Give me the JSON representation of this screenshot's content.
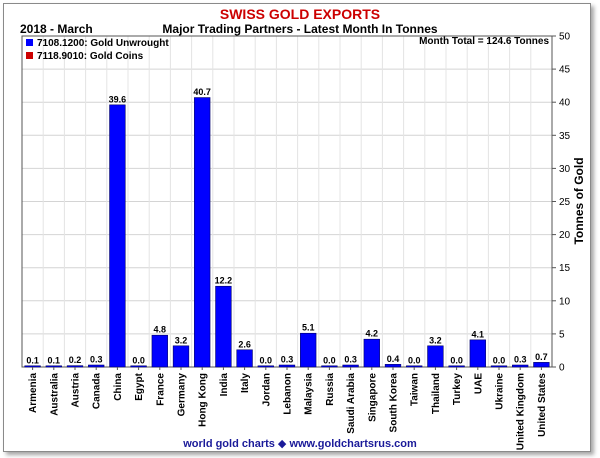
{
  "header": {
    "title": "SWISS GOLD EXPORTS",
    "period": "2018 - March",
    "subtitle": "Major Trading Partners - Latest Month In Tonnes"
  },
  "footer": {
    "text": "world gold charts ◆ www.goldchartsrus.com"
  },
  "colors": {
    "title": "#cc0000",
    "series_unwrought": "#0000ff",
    "series_coins": "#cc0000",
    "footer": "#1a1a99"
  },
  "chart_data": {
    "type": "bar",
    "title": "SWISS GOLD EXPORTS",
    "subtitle": "Major Trading Partners - Latest Month In Tonnes",
    "annotation": "Month Total = 124.6 Tonnes",
    "ylabel": "Tonnes of Gold",
    "ylim": [
      0,
      50
    ],
    "yticks": [
      0,
      5,
      10,
      15,
      20,
      25,
      30,
      35,
      40,
      45,
      50
    ],
    "grid": true,
    "legend_position": "top-left",
    "categories": [
      "Armenia",
      "Australia",
      "Austria",
      "Canada",
      "China",
      "Egypt",
      "France",
      "Germany",
      "Hong Kong",
      "India",
      "Italy",
      "Jordan",
      "Lebanon",
      "Malaysia",
      "Russia",
      "Saudi Arabia",
      "Singapore",
      "South Korea",
      "Taiwan",
      "Thailand",
      "Turkey",
      "UAE",
      "Ukraine",
      "United Kingdom",
      "United States"
    ],
    "series": [
      {
        "name": "7108.1200: Gold Unwrought",
        "color": "#0000ff",
        "values": [
          0.1,
          0.1,
          0.2,
          0.3,
          39.6,
          0.0,
          4.8,
          3.2,
          40.7,
          12.2,
          2.6,
          0.0,
          0.3,
          5.1,
          0.0,
          0.3,
          4.2,
          0.4,
          0.0,
          3.2,
          0.0,
          4.1,
          0.0,
          0.3,
          0.7
        ]
      },
      {
        "name": "7118.9010: Gold Coins",
        "color": "#cc0000",
        "values": [
          0,
          0,
          0,
          0,
          0,
          0,
          0,
          0,
          0,
          0,
          0,
          0,
          0,
          0,
          0,
          0,
          0,
          0,
          0,
          0,
          0,
          0,
          0,
          0,
          0
        ]
      }
    ],
    "data_labels": [
      "0.1",
      "0.1",
      "0.2",
      "0.3",
      "39.6",
      "0.0",
      "4.8",
      "3.2",
      "40.7",
      "12.2",
      "2.6",
      "0.0",
      "0.3",
      "5.1",
      "0.0",
      "0.3",
      "4.2",
      "0.4",
      "0.0",
      "3.2",
      "0.0",
      "4.1",
      "0.0",
      "0.3",
      "0.7"
    ]
  }
}
